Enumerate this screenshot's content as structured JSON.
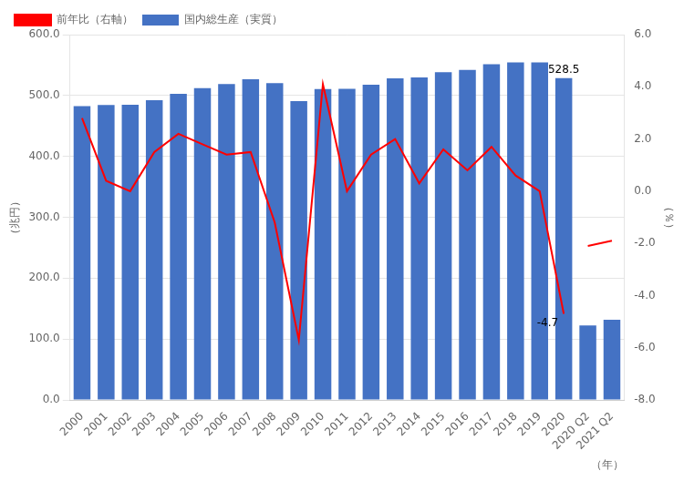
{
  "chart_data": {
    "type": "bar",
    "categories": [
      "2000",
      "2001",
      "2002",
      "2003",
      "2004",
      "2005",
      "2006",
      "2007",
      "2008",
      "2009",
      "2010",
      "2011",
      "2012",
      "2013",
      "2014",
      "2015",
      "2016",
      "2017",
      "2018",
      "2019",
      "2020",
      "2020 Q2",
      "2021 Q2"
    ],
    "series": [
      {
        "name": "国内総生産（実質）",
        "type": "bar",
        "color": "#4472C4",
        "values": [
          482.6,
          484.5,
          484.7,
          492.1,
          502.9,
          512.0,
          519.0,
          526.7,
          520.2,
          490.6,
          510.7,
          510.8,
          517.9,
          528.2,
          529.8,
          538.1,
          542.1,
          551.2,
          554.3,
          554.4,
          528.5,
          122.3,
          131.6
        ]
      },
      {
        "name": "前年比（右軸）",
        "type": "line",
        "axis": "y2",
        "color": "#FF0000",
        "values": [
          2.8,
          0.4,
          0.0,
          1.5,
          2.2,
          1.8,
          1.4,
          1.5,
          -1.2,
          -5.7,
          4.1,
          0.0,
          1.4,
          2.0,
          0.3,
          1.6,
          0.8,
          1.7,
          0.6,
          0.0,
          -4.7,
          null,
          null
        ]
      },
      {
        "type": "line",
        "axis": "y2",
        "color": "#FF0000",
        "values": [
          null,
          null,
          null,
          null,
          null,
          null,
          null,
          null,
          null,
          null,
          null,
          null,
          null,
          null,
          null,
          null,
          null,
          null,
          null,
          null,
          null,
          -2.1,
          -1.9
        ]
      }
    ],
    "xlabel": "（年）",
    "ylabel": "（兆円）",
    "y2label": "（％）",
    "ylim": [
      0,
      600
    ],
    "yticks": [
      {
        "value": 0,
        "label": "0.0"
      },
      {
        "value": 100,
        "label": "100.0"
      },
      {
        "value": 200,
        "label": "200.0"
      },
      {
        "value": 300,
        "label": "300.0"
      },
      {
        "value": 400,
        "label": "400.0"
      },
      {
        "value": 500,
        "label": "500.0"
      },
      {
        "value": 600,
        "label": "600.0"
      }
    ],
    "y2lim": [
      -8,
      6
    ],
    "y2ticks": [
      {
        "value": -8,
        "label": "-8.0"
      },
      {
        "value": -6,
        "label": "-6.0"
      },
      {
        "value": -4,
        "label": "-4.0"
      },
      {
        "value": -2,
        "label": "-2.0"
      },
      {
        "value": 0,
        "label": "0.0"
      },
      {
        "value": 2,
        "label": "2.0"
      },
      {
        "value": 4,
        "label": "4.0"
      },
      {
        "value": 6,
        "label": "6.0"
      }
    ],
    "annotations": [
      {
        "text": "528.5",
        "x": "2020",
        "y": 528.5,
        "axis": "y"
      },
      {
        "text": "-4.7",
        "x": "2020",
        "y": -4.7,
        "axis": "y2"
      }
    ],
    "grid": true,
    "legend": "upper left"
  }
}
